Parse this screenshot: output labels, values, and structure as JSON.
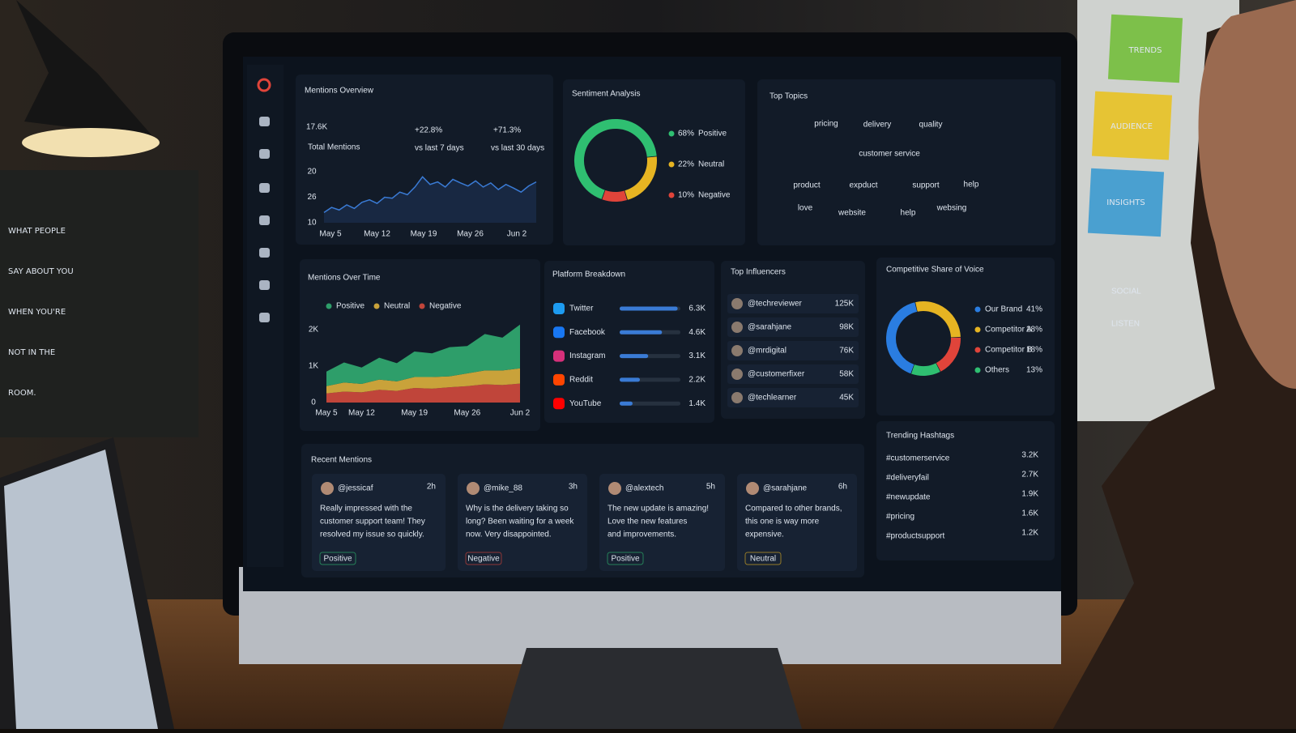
{
  "background": {
    "chalkboard": [
      "WHAT PEOPLE",
      "SAY ABOUT YOU",
      "WHEN YOU'RE",
      "NOT IN THE",
      "ROOM."
    ],
    "notes": [
      "TRENDS",
      "AUDIENCE",
      "INSIGHTS"
    ],
    "whiteboard": [
      "SOCIAL",
      "LISTEN"
    ]
  },
  "mentions_overview": {
    "title": "Mentions Overview",
    "total": "17.6K",
    "total_label": "Total Mentions",
    "stats": [
      {
        "value": "+22.8%",
        "label": "vs last 7 days"
      },
      {
        "value": "+71.3%",
        "label": "vs last 30 days"
      }
    ],
    "chart": {
      "type": "line",
      "color": "#3a7bd5",
      "categories": [
        "May 5",
        "May 12",
        "May 19",
        "May 26",
        "Jun 2"
      ],
      "y_labels": [
        "20",
        "26",
        "10"
      ],
      "ylim": [
        0,
        100
      ],
      "values": [
        20,
        30,
        25,
        35,
        28,
        40,
        45,
        38,
        50,
        48,
        60,
        55,
        70,
        90,
        75,
        80,
        70,
        85,
        78,
        72,
        82,
        70,
        78,
        65,
        75,
        68,
        60,
        72,
        80
      ]
    }
  },
  "sentiment": {
    "title": "Sentiment Analysis",
    "type": "donut",
    "series": [
      {
        "name": "Positive",
        "color": "#2fbf71",
        "value": 68,
        "value_label": "68%"
      },
      {
        "name": "Neutral",
        "color": "#e6b422",
        "value": 22,
        "value_label": "22%"
      },
      {
        "name": "Negative",
        "color": "#e0443a",
        "value": 10,
        "value_label": "10%"
      }
    ]
  },
  "top_topics": {
    "title": "Top Topics",
    "words": [
      {
        "text": "pricing",
        "color": "#6a7cff"
      },
      {
        "text": "delivery",
        "color": "#5a8cff"
      },
      {
        "text": "quality",
        "color": "#5aa0ff"
      },
      {
        "text": "customer service",
        "color": "#4fb0ff"
      },
      {
        "text": "product",
        "color": "#c0508a"
      },
      {
        "text": "expduct",
        "color": "#56d08a"
      },
      {
        "text": "support",
        "color": "#4fc2ff"
      },
      {
        "text": "help",
        "color": "#b050c0"
      },
      {
        "text": "love",
        "color": "#c06090"
      },
      {
        "text": "website",
        "color": "#60d090"
      },
      {
        "text": "help",
        "color": "#60d080"
      },
      {
        "text": "websing",
        "color": "#c05070"
      }
    ]
  },
  "mentions_over_time": {
    "title": "Mentions Over Time",
    "type": "stacked-area",
    "categories": [
      "May 5",
      null,
      "May 12",
      null,
      null,
      "May 19",
      null,
      null,
      "May 26",
      null,
      null,
      "Jun 2"
    ],
    "ylim": [
      0,
      2200
    ],
    "yticks": [
      {
        "value": 0,
        "label": "0"
      },
      {
        "value": 1000,
        "label": "1K"
      },
      {
        "value": 2000,
        "label": "2K"
      }
    ],
    "series": [
      {
        "name": "Positive",
        "color": "#2e9e6a",
        "values": [
          400,
          550,
          450,
          600,
          500,
          700,
          650,
          800,
          750,
          1000,
          900,
          1200
        ]
      },
      {
        "name": "Neutral",
        "color": "#c9a23a",
        "values": [
          200,
          250,
          230,
          280,
          260,
          300,
          320,
          300,
          350,
          380,
          400,
          420
        ]
      },
      {
        "name": "Negative",
        "color": "#c0453a",
        "values": [
          250,
          300,
          280,
          350,
          320,
          400,
          380,
          420,
          450,
          500,
          480,
          520
        ]
      }
    ]
  },
  "platform_breakdown": {
    "title": "Platform Breakdown",
    "xlim": [
      0,
      6600
    ],
    "bar_color": "#3a7bd5",
    "rows": [
      {
        "name": "Twitter",
        "icon_color": "#1d9bf0",
        "value": 6300,
        "value_label": "6.3K"
      },
      {
        "name": "Facebook",
        "icon_color": "#1877f2",
        "value": 4600,
        "value_label": "4.6K"
      },
      {
        "name": "Instagram",
        "icon_color": "#d6307a",
        "value": 3100,
        "value_label": "3.1K"
      },
      {
        "name": "Reddit",
        "icon_color": "#ff4500",
        "value": 2200,
        "value_label": "2.2K"
      },
      {
        "name": "YouTube",
        "icon_color": "#ff0000",
        "value": 1400,
        "value_label": "1.4K"
      }
    ]
  },
  "top_influencers": {
    "title": "Top Influencers",
    "rows": [
      {
        "handle": "@techreviewer",
        "value": 125000,
        "value_label": "125K"
      },
      {
        "handle": "@sarahjane",
        "value": 98000,
        "value_label": "98K"
      },
      {
        "handle": "@mrdigital",
        "value": 76000,
        "value_label": "76K"
      },
      {
        "handle": "@customerfixer",
        "value": 58000,
        "value_label": "58K"
      },
      {
        "handle": "@techlearner",
        "value": 45000,
        "value_label": "45K"
      }
    ]
  },
  "share_of_voice": {
    "title": "Competitive Share of Voice",
    "type": "donut",
    "series": [
      {
        "name": "Our Brand",
        "color": "#2a7de1",
        "value": 41,
        "value_label": "41%"
      },
      {
        "name": "Competitor A",
        "color": "#e6b422",
        "value": 28,
        "value_label": "28%"
      },
      {
        "name": "Competitor B",
        "color": "#e0443a",
        "value": 18,
        "value_label": "18%"
      },
      {
        "name": "Others",
        "color": "#2fbf71",
        "value": 13,
        "value_label": "13%"
      }
    ]
  },
  "recent_mentions": {
    "title": "Recent Mentions",
    "cards": [
      {
        "handle": "@jessicaf",
        "time": "2h",
        "text": [
          "Really impressed with the",
          "customer support team! They",
          "resolved my issue so quickly."
        ],
        "tag": "Positive",
        "tag_color": "#2fbf71"
      },
      {
        "handle": "@mike_88",
        "time": "3h",
        "text": [
          "Why is the delivery taking so",
          "long? Been waiting for a week",
          "now. Very disappointed."
        ],
        "tag": "Negative",
        "tag_color": "#e0443a"
      },
      {
        "handle": "@alextech",
        "time": "5h",
        "text": [
          "The new update is amazing!",
          "Love the new features",
          "and improvements."
        ],
        "tag": "Positive",
        "tag_color": "#2fbf71"
      },
      {
        "handle": "@sarahjane",
        "time": "6h",
        "text": [
          "Compared to other brands,",
          "this one is way more",
          "expensive."
        ],
        "tag": "Neutral",
        "tag_color": "#e6b422"
      }
    ]
  },
  "trending_hashtags": {
    "title": "Trending Hashtags",
    "rows": [
      {
        "tag": "#customerservice",
        "value": 3200,
        "value_label": "3.2K"
      },
      {
        "tag": "#deliveryfail",
        "value": 2700,
        "value_label": "2.7K"
      },
      {
        "tag": "#newupdate",
        "value": 1900,
        "value_label": "1.9K"
      },
      {
        "tag": "#pricing",
        "value": 1600,
        "value_label": "1.6K"
      },
      {
        "tag": "#productsupport",
        "value": 1200,
        "value_label": "1.2K"
      }
    ]
  }
}
